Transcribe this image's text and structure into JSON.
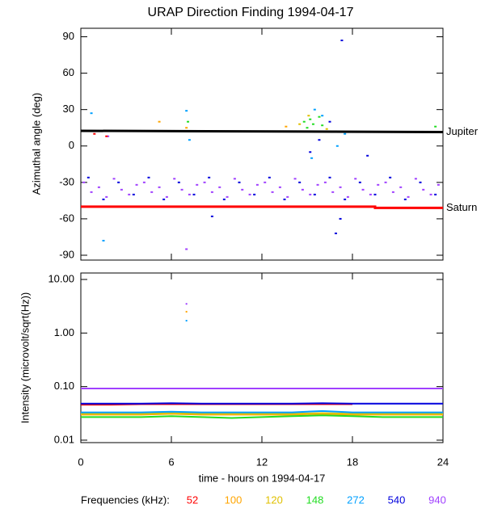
{
  "chart_data": [
    {
      "type": "scatter",
      "title": "URAP Direction Finding  1994-04-17",
      "ylabel": "Azimuthal angle (deg)",
      "xlim": [
        0,
        24
      ],
      "xticks": [
        0,
        6,
        12,
        18,
        24
      ],
      "ylim": [
        -94,
        97
      ],
      "yticks": [
        90,
        60,
        30,
        0,
        -30,
        -60,
        -90
      ],
      "lines": [
        {
          "name": "Jupiter",
          "color": "#000000",
          "x": [
            0,
            24
          ],
          "values": [
            12.5,
            11.5
          ]
        },
        {
          "name": "Saturn",
          "color": "#ff0000",
          "x": [
            0,
            19.5,
            19.5,
            24
          ],
          "values": [
            -50,
            -50,
            -51,
            -51
          ]
        }
      ],
      "series": [
        {
          "color": "#a040ff",
          "x": [
            0.2,
            0.7,
            1.2,
            1.7,
            2.2,
            2.7,
            3.2,
            3.7,
            4.2,
            4.7,
            5.2,
            5.7,
            6.2,
            6.7,
            7.2,
            7.7,
            8.2,
            8.7,
            9.2,
            9.7,
            10.2,
            10.7,
            11.2,
            11.7,
            12.2,
            12.7,
            13.2,
            13.7,
            14.2,
            14.7,
            15.2,
            15.7,
            16.2,
            16.7,
            17.2,
            17.7,
            18.2,
            18.7,
            19.2,
            19.7,
            20.2,
            20.7,
            21.2,
            21.7,
            22.2,
            22.7,
            23.2,
            23.7,
            7.0,
            1.8
          ],
          "values": [
            -30,
            -38,
            -34,
            -42,
            -27,
            -36,
            -40,
            -32,
            -30,
            -38,
            -34,
            -42,
            -27,
            -36,
            -40,
            -32,
            -30,
            -38,
            -34,
            -42,
            -27,
            -36,
            -40,
            -32,
            -30,
            -38,
            -34,
            -42,
            -27,
            -36,
            -40,
            -32,
            -30,
            -38,
            -34,
            -42,
            -27,
            -36,
            -40,
            -32,
            -30,
            -38,
            -34,
            -42,
            -27,
            -36,
            -40,
            -32,
            -85,
            8
          ]
        },
        {
          "color": "#0000dd",
          "x": [
            0.5,
            1.5,
            2.5,
            3.5,
            4.5,
            5.5,
            6.5,
            7.5,
            8.5,
            9.5,
            10.5,
            11.5,
            12.5,
            13.5,
            14.5,
            15.5,
            16.5,
            17.5,
            18.5,
            19.5,
            20.5,
            21.5,
            22.5,
            23.5,
            15.2,
            15.8,
            16.5,
            17.2,
            17.3,
            8.7,
            16.9,
            19.0
          ],
          "values": [
            -26,
            -44,
            -30,
            -40,
            -26,
            -44,
            -30,
            -40,
            -26,
            -44,
            -30,
            -40,
            -26,
            -44,
            -30,
            -40,
            -26,
            -44,
            -30,
            -40,
            -26,
            -44,
            -30,
            -40,
            -5,
            5,
            20,
            -60,
            87,
            -58,
            -72,
            -8
          ]
        },
        {
          "color": "#22dd22",
          "x": [
            14.8,
            15.0,
            15.2,
            15.4,
            15.6,
            15.8,
            16.0,
            7.1,
            23.5
          ],
          "values": [
            20,
            15,
            22,
            18,
            12,
            24,
            17,
            20,
            16
          ]
        },
        {
          "color": "#00a0ff",
          "x": [
            0.7,
            1.5,
            7.0,
            7.2,
            15.5,
            16.0,
            17.0,
            17.5,
            15.3
          ],
          "values": [
            27,
            -78,
            29,
            5,
            30,
            25,
            0,
            10,
            -10
          ]
        },
        {
          "color": "#e0c000",
          "x": [
            14.5,
            15.1,
            16.3
          ],
          "values": [
            18,
            25,
            14
          ]
        },
        {
          "color": "#ffa500",
          "x": [
            5.2,
            13.6,
            7.0
          ],
          "values": [
            20,
            16,
            15
          ]
        },
        {
          "color": "#ff0000",
          "x": [
            0.9,
            1.7
          ],
          "values": [
            10,
            8
          ]
        }
      ]
    },
    {
      "type": "line",
      "ylabel": "Intensity (microvolt/sqrt(Hz))",
      "xlabel": "time - hours on 1994-04-17",
      "legend_title": "Frequencies (kHz):",
      "ylog": true,
      "xlim": [
        0,
        24
      ],
      "xticks": [
        0,
        6,
        12,
        18,
        24
      ],
      "ylim": [
        0.009,
        13.2
      ],
      "yticks": [
        {
          "value": 10,
          "label": "10.00"
        },
        {
          "value": 1,
          "label": "1.00"
        },
        {
          "value": 0.1,
          "label": "0.10"
        },
        {
          "value": 0.01,
          "label": "0.01"
        }
      ],
      "x": [
        0,
        2,
        4,
        6,
        8,
        10,
        12,
        14,
        16,
        18,
        20,
        22,
        24
      ],
      "series": [
        {
          "name": "52",
          "color": "#ff0000",
          "values": [
            0.046,
            0.046,
            0.047,
            0.047,
            0.047,
            0.047,
            0.047,
            0.047,
            0.047,
            0.047,
            null,
            null,
            null
          ]
        },
        {
          "name": "100",
          "color": "#ffa500",
          "values": [
            0.03,
            0.03,
            0.03,
            0.031,
            0.03,
            0.03,
            0.03,
            0.03,
            0.031,
            0.03,
            0.03,
            0.03,
            0.03
          ]
        },
        {
          "name": "120",
          "color": "#e0c000",
          "values": [
            0.031,
            0.031,
            0.031,
            0.032,
            0.031,
            0.031,
            0.031,
            0.031,
            0.032,
            0.031,
            0.031,
            0.031,
            0.031
          ]
        },
        {
          "name": "148",
          "color": "#22dd22",
          "values": [
            0.027,
            0.027,
            0.027,
            0.028,
            0.027,
            0.026,
            0.027,
            0.028,
            0.029,
            0.028,
            0.027,
            0.027,
            0.027
          ]
        },
        {
          "name": "272",
          "color": "#00a0ff",
          "values": [
            0.033,
            0.033,
            0.033,
            0.034,
            0.033,
            0.033,
            0.033,
            0.033,
            0.035,
            0.033,
            0.033,
            0.033,
            0.033
          ]
        },
        {
          "name": "540",
          "color": "#0000dd",
          "values": [
            0.048,
            0.048,
            0.048,
            0.049,
            0.048,
            0.048,
            0.048,
            0.048,
            0.049,
            0.048,
            0.048,
            0.048,
            0.048
          ]
        },
        {
          "name": "940",
          "color": "#a040ff",
          "values": [
            0.092,
            0.092,
            0.092,
            0.092,
            0.092,
            0.092,
            0.092,
            0.092,
            0.092,
            0.092,
            0.092,
            0.092,
            0.092
          ]
        }
      ],
      "points": {
        "x": [
          7,
          7,
          7
        ],
        "values": [
          3.5,
          2.5,
          1.7
        ],
        "colors": [
          "#a040ff",
          "#ffa500",
          "#00a0ff"
        ]
      }
    }
  ]
}
